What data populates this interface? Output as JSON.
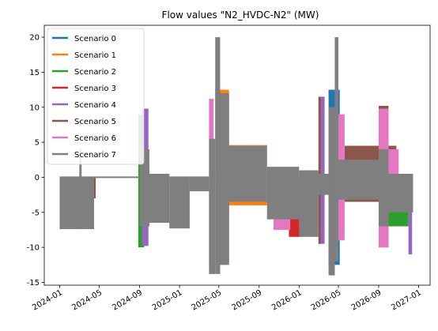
{
  "chart_data": {
    "type": "line",
    "title": "Flow values \"N2_HVDC-N2\" (MW)",
    "xlabel": "",
    "ylabel": "",
    "x_ticks": [
      "2024-01",
      "2024-05",
      "2024-09",
      "2025-01",
      "2025-05",
      "2025-09",
      "2026-01",
      "2026-05",
      "2026-09",
      "2027-01"
    ],
    "x_tick_dates": [
      "2024-01-01",
      "2024-05-01",
      "2024-09-01",
      "2025-01-01",
      "2025-05-01",
      "2025-09-01",
      "2026-01-01",
      "2026-05-01",
      "2026-09-01",
      "2027-01-01"
    ],
    "xlim": [
      "2023-11-15",
      "2027-02-05"
    ],
    "y_ticks": [
      -15,
      -10,
      -5,
      0,
      5,
      10,
      15,
      20
    ],
    "ylim": [
      -15.4,
      21.7
    ],
    "legend_position": "upper-left",
    "grid": false,
    "series": [
      {
        "name": "Scenario 0",
        "color": "#1f77b4",
        "bands": [
          {
            "x0": "2026-04-01",
            "x1": "2026-05-05",
            "min": -12.5,
            "max": 12.5
          }
        ]
      },
      {
        "name": "Scenario 1",
        "color": "#ff7f0e",
        "bands": [
          {
            "x0": "2025-05-15",
            "x1": "2025-09-25",
            "min": -4.0,
            "max": 4.6
          },
          {
            "x0": "2025-04-20",
            "x1": "2025-06-01",
            "min": -12.5,
            "max": 12.5
          }
        ]
      },
      {
        "name": "Scenario 2",
        "color": "#2ca02c",
        "bands": [
          {
            "x0": "2024-08-28",
            "x1": "2024-09-15",
            "min": -10.0,
            "max": 9.0
          },
          {
            "x0": "2026-10-01",
            "x1": "2026-12-01",
            "min": -7.0,
            "max": 0.0
          }
        ]
      },
      {
        "name": "Scenario 3",
        "color": "#d62728",
        "bands": [
          {
            "x0": "2025-12-01",
            "x1": "2026-01-10",
            "min": -8.5,
            "max": 0.0
          },
          {
            "x0": "2025-04-25",
            "x1": "2025-06-01",
            "min": -12.0,
            "max": 12.0
          }
        ]
      },
      {
        "name": "Scenario 4",
        "color": "#9467bd",
        "bands": [
          {
            "x0": "2024-09-08",
            "x1": "2024-09-28",
            "min": -9.8,
            "max": 9.8
          },
          {
            "x0": "2026-03-05",
            "x1": "2026-03-20",
            "min": -9.5,
            "max": 11.5
          },
          {
            "x0": "2026-12-01",
            "x1": "2026-12-12",
            "min": -11.0,
            "max": 0.0
          }
        ]
      },
      {
        "name": "Scenario 5",
        "color": "#8c564b",
        "bands": [
          {
            "x0": "2024-04-01",
            "x1": "2024-04-20",
            "min": -3.0,
            "max": 0.0
          },
          {
            "x0": "2026-03-01",
            "x1": "2026-03-08",
            "min": -9.5,
            "max": 11.5
          },
          {
            "x0": "2026-05-20",
            "x1": "2026-10-25",
            "min": -3.5,
            "max": 4.5
          },
          {
            "x0": "2026-09-01",
            "x1": "2026-10-01",
            "min": -10.0,
            "max": 10.2
          }
        ]
      },
      {
        "name": "Scenario 6",
        "color": "#e377c2",
        "bands": [
          {
            "x0": "2025-04-01",
            "x1": "2025-04-15",
            "min": -12.5,
            "max": 11.2
          },
          {
            "x0": "2025-10-15",
            "x1": "2025-12-05",
            "min": -7.5,
            "max": 0.5
          },
          {
            "x0": "2026-01-01",
            "x1": "2026-03-01",
            "min": -7.0,
            "max": 0.5
          },
          {
            "x0": "2026-04-20",
            "x1": "2026-05-20",
            "min": -9.0,
            "max": 9.0
          },
          {
            "x0": "2026-09-01",
            "x1": "2026-10-01",
            "min": -10.0,
            "max": 9.8
          },
          {
            "x0": "2026-10-01",
            "x1": "2026-11-01",
            "min": -3.0,
            "max": 4.0
          }
        ]
      },
      {
        "name": "Scenario 7",
        "color": "#7f7f7f",
        "bands": [
          {
            "x0": "2024-01-01",
            "x1": "2024-04-15",
            "min": -7.4,
            "max": 0.0
          },
          {
            "x0": "2024-03-01",
            "x1": "2024-03-08",
            "min": -7.4,
            "max": 4.0
          },
          {
            "x0": "2024-09-01",
            "x1": "2024-10-01",
            "min": -7.0,
            "max": 4.0
          },
          {
            "x0": "2024-10-01",
            "x1": "2024-12-01",
            "min": -6.5,
            "max": 0.5
          },
          {
            "x0": "2024-12-01",
            "x1": "2025-02-01",
            "min": -7.3,
            "max": 0.0
          },
          {
            "x0": "2025-02-01",
            "x1": "2025-04-01",
            "min": -2.0,
            "max": 0.0
          },
          {
            "x0": "2025-04-01",
            "x1": "2025-04-20",
            "min": -13.8,
            "max": 5.5
          },
          {
            "x0": "2025-04-20",
            "x1": "2025-05-05",
            "min": -13.8,
            "max": 20.0
          },
          {
            "x0": "2025-05-05",
            "x1": "2025-06-01",
            "min": -12.5,
            "max": 12.0
          },
          {
            "x0": "2025-06-01",
            "x1": "2025-09-25",
            "min": -3.5,
            "max": 4.5
          },
          {
            "x0": "2025-09-25",
            "x1": "2026-01-01",
            "min": -6.0,
            "max": 1.5
          },
          {
            "x0": "2026-01-01",
            "x1": "2026-03-01",
            "min": -8.5,
            "max": 1.0
          },
          {
            "x0": "2026-03-01",
            "x1": "2026-04-01",
            "min": -2.5,
            "max": 0.5
          },
          {
            "x0": "2026-04-01",
            "x1": "2026-04-20",
            "min": -14.0,
            "max": 10.0
          },
          {
            "x0": "2026-04-20",
            "x1": "2026-05-01",
            "min": -12.0,
            "max": 20.0
          },
          {
            "x0": "2026-05-01",
            "x1": "2026-09-01",
            "min": -3.2,
            "max": 2.5
          },
          {
            "x0": "2026-09-01",
            "x1": "2026-10-01",
            "min": -7.0,
            "max": 4.0
          },
          {
            "x0": "2026-10-01",
            "x1": "2026-12-15",
            "min": -5.0,
            "max": 0.5
          }
        ]
      }
    ]
  }
}
